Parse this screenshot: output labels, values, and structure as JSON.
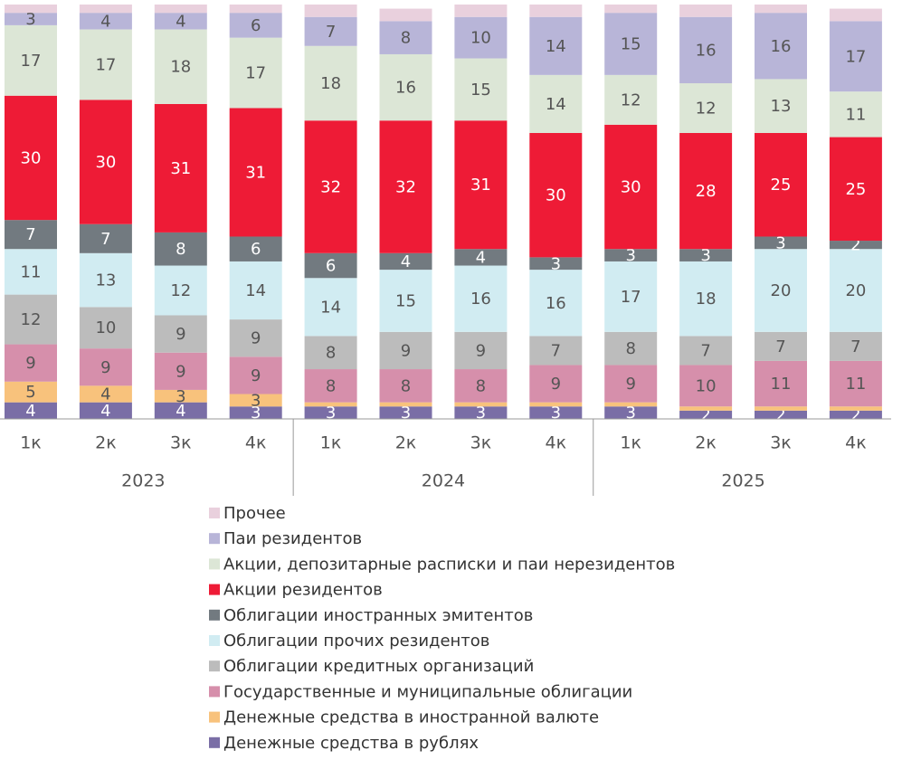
{
  "chart_data": {
    "type": "stacked_bar",
    "groups": [
      {
        "label": "2023",
        "categories": [
          "1к",
          "2к",
          "3к",
          "4к"
        ]
      },
      {
        "label": "2024",
        "categories": [
          "1к",
          "2к",
          "3к",
          "4к"
        ]
      },
      {
        "label": "2025",
        "categories": [
          "1к",
          "2к",
          "3к",
          "4к"
        ]
      }
    ],
    "ylim": [
      0,
      100
    ],
    "series": [
      {
        "name": "Денежные средства в рублях",
        "color": "#7a6ea6",
        "values": [
          4,
          4,
          4,
          3,
          3,
          3,
          3,
          3,
          3,
          2,
          2,
          2
        ]
      },
      {
        "name": "Денежные средства в иностранной валюте",
        "color": "#f8c27c",
        "values": [
          5,
          4,
          3,
          3,
          1,
          1,
          1,
          1,
          1,
          1,
          1,
          1
        ]
      },
      {
        "name": "Государственные и муниципальные облигации",
        "color": "#d68fab",
        "values": [
          9,
          9,
          9,
          9,
          8,
          8,
          8,
          9,
          9,
          10,
          11,
          11
        ]
      },
      {
        "name": "Облигации кредитных организаций",
        "color": "#bcbcbc",
        "values": [
          12,
          10,
          9,
          9,
          8,
          9,
          9,
          7,
          8,
          7,
          7,
          7
        ]
      },
      {
        "name": "Облигации прочих резидентов",
        "color": "#d1ecf2",
        "values": [
          11,
          13,
          12,
          14,
          14,
          15,
          16,
          16,
          17,
          18,
          20,
          20
        ]
      },
      {
        "name": "Облигации иностранных эмитентов",
        "color": "#727a80",
        "values": [
          7,
          7,
          8,
          6,
          6,
          4,
          4,
          3,
          3,
          3,
          3,
          2
        ]
      },
      {
        "name": "Акции резидентов",
        "color": "#ee1b36",
        "values": [
          30,
          30,
          31,
          31,
          32,
          32,
          31,
          30,
          30,
          28,
          25,
          25
        ]
      },
      {
        "name": "Акции, депозитарные расписки и паи нерезидентов",
        "color": "#dce6d6",
        "values": [
          17,
          17,
          18,
          17,
          18,
          16,
          15,
          14,
          12,
          12,
          13,
          11
        ]
      },
      {
        "name": "Паи резидентов",
        "color": "#b8b5d8",
        "values": [
          3,
          4,
          4,
          6,
          7,
          8,
          10,
          14,
          15,
          16,
          16,
          17
        ]
      },
      {
        "name": "Прочее",
        "color": "#e9d0dd",
        "show_labels": false,
        "values": [
          2,
          2,
          2,
          2,
          3,
          3,
          3,
          3,
          2,
          3,
          2,
          3
        ]
      }
    ]
  }
}
